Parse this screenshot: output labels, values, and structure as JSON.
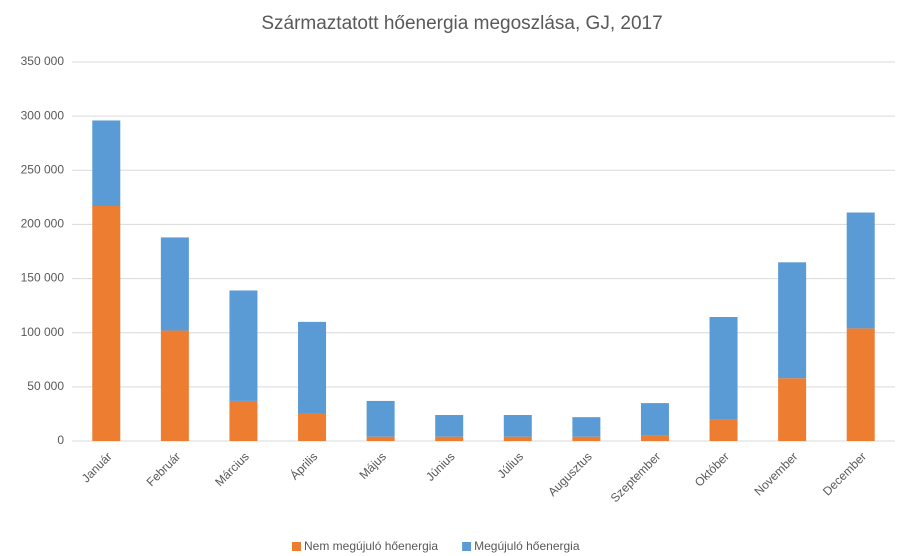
{
  "chart_data": {
    "type": "stacked_bar",
    "title": "Származtatott hőenergia megoszlása, GJ, 2017",
    "categories": [
      "Január",
      "Február",
      "Március",
      "Április",
      "Május",
      "Június",
      "Július",
      "Augusztus",
      "Szeptember",
      "Október",
      "November",
      "December"
    ],
    "series": [
      {
        "name": "Nem megújuló hőenergia",
        "color": "#ed7d31",
        "values": [
          217000,
          102000,
          37000,
          25000,
          4000,
          4000,
          4000,
          4000,
          5500,
          19500,
          58000,
          104000
        ]
      },
      {
        "name": "Megújuló hőenergia",
        "color": "#5b9bd5",
        "values": [
          79000,
          86000,
          102000,
          85000,
          33000,
          20000,
          20000,
          18000,
          29500,
          95000,
          107000,
          107000
        ]
      }
    ],
    "ylim": [
      0,
      350000
    ],
    "yticks": [
      0,
      {
        "value": 50000,
        "label": "50 000"
      },
      {
        "value": 100000,
        "label": "100 000"
      },
      {
        "value": 150000,
        "label": "150 000"
      },
      {
        "value": 200000,
        "label": "200 000"
      },
      {
        "value": 250000,
        "label": "250 000"
      },
      {
        "value": 300000,
        "label": "300 000"
      },
      {
        "value": 350000,
        "label": "350 000"
      }
    ],
    "grid": true,
    "legend": "bottom"
  }
}
